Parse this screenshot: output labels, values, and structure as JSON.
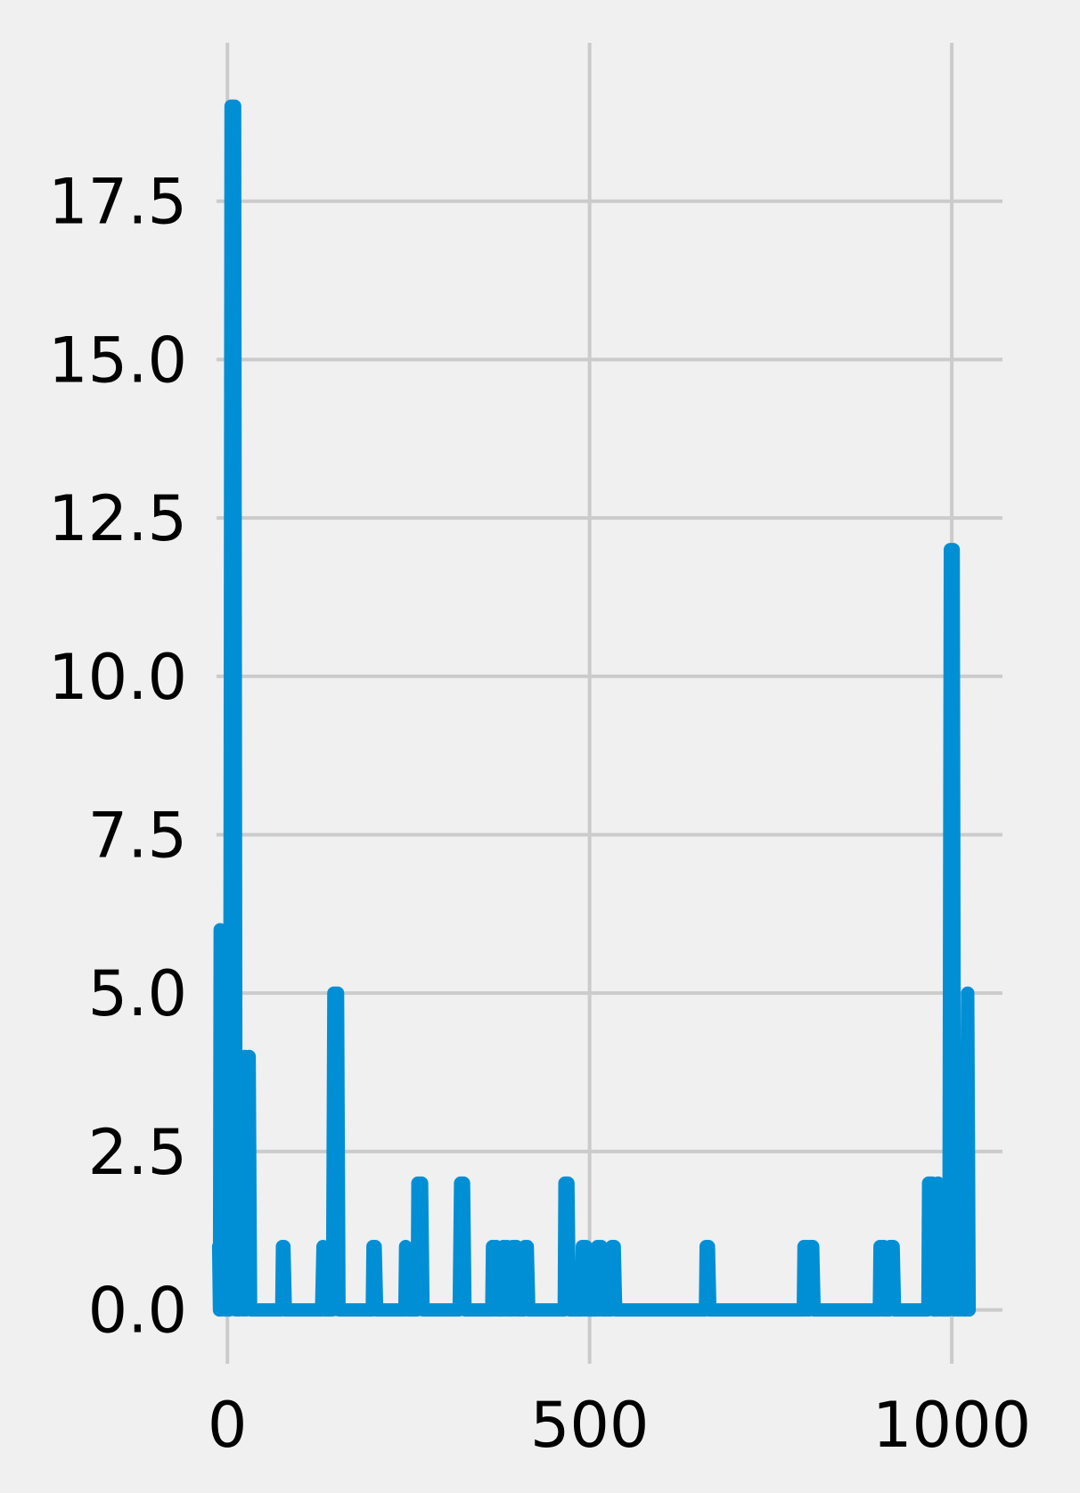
{
  "chart_data": {
    "type": "line",
    "title": "",
    "xlabel": "",
    "ylabel": "",
    "xlim": [
      -15,
      1070
    ],
    "ylim": [
      -0.85,
      20.0
    ],
    "x_ticks": [
      0,
      500,
      1000
    ],
    "y_ticks": [
      0.0,
      2.5,
      5.0,
      7.5,
      10.0,
      12.5,
      15.0,
      17.5
    ],
    "x_tick_labels": [
      "0",
      "500",
      "1000"
    ],
    "y_tick_labels": [
      "0.0",
      "2.5",
      "5.0",
      "7.5",
      "10.0",
      "12.5",
      "15.0",
      "17.5"
    ],
    "grid": true,
    "background_color": "#f0f0f0",
    "grid_color": "#cbcbcb",
    "series": [
      {
        "color": "#008fd5",
        "points": [
          [
            -12,
            1
          ],
          [
            -11,
            0
          ],
          [
            -10,
            6
          ],
          [
            -8,
            0
          ],
          [
            -6,
            3
          ],
          [
            -4,
            0
          ],
          [
            3,
            0
          ],
          [
            5,
            19
          ],
          [
            10,
            19
          ],
          [
            12,
            0
          ],
          [
            14,
            2
          ],
          [
            16,
            0
          ],
          [
            20,
            3
          ],
          [
            22,
            0
          ],
          [
            24,
            4
          ],
          [
            26,
            0
          ],
          [
            30,
            4
          ],
          [
            32,
            0
          ],
          [
            36,
            0
          ],
          [
            75,
            0
          ],
          [
            76,
            1
          ],
          [
            78,
            1
          ],
          [
            80,
            0
          ],
          [
            130,
            0
          ],
          [
            132,
            1
          ],
          [
            134,
            0
          ],
          [
            145,
            0
          ],
          [
            147,
            5
          ],
          [
            152,
            5
          ],
          [
            154,
            0
          ],
          [
            200,
            0
          ],
          [
            201,
            1
          ],
          [
            204,
            1
          ],
          [
            206,
            0
          ],
          [
            245,
            0
          ],
          [
            246,
            1
          ],
          [
            249,
            0
          ],
          [
            262,
            0
          ],
          [
            263,
            2
          ],
          [
            268,
            2
          ],
          [
            270,
            0
          ],
          [
            320,
            0
          ],
          [
            322,
            2
          ],
          [
            326,
            2
          ],
          [
            328,
            0
          ],
          [
            365,
            0
          ],
          [
            366,
            1
          ],
          [
            369,
            0
          ],
          [
            371,
            1
          ],
          [
            373,
            0
          ],
          [
            380,
            0
          ],
          [
            381,
            1
          ],
          [
            384,
            0
          ],
          [
            386,
            1
          ],
          [
            388,
            0
          ],
          [
            393,
            0
          ],
          [
            394,
            1
          ],
          [
            397,
            0
          ],
          [
            399,
            1
          ],
          [
            401,
            0
          ],
          [
            410,
            0
          ],
          [
            411,
            1
          ],
          [
            414,
            1
          ],
          [
            416,
            0
          ],
          [
            465,
            0
          ],
          [
            466,
            2
          ],
          [
            470,
            2
          ],
          [
            472,
            0
          ],
          [
            489,
            0
          ],
          [
            490,
            1
          ],
          [
            493,
            0
          ],
          [
            495,
            1
          ],
          [
            497,
            0
          ],
          [
            510,
            0
          ],
          [
            511,
            1
          ],
          [
            514,
            0
          ],
          [
            516,
            1
          ],
          [
            518,
            0
          ],
          [
            530,
            0
          ],
          [
            531,
            1
          ],
          [
            534,
            1
          ],
          [
            536,
            0
          ],
          [
            660,
            0
          ],
          [
            661,
            1
          ],
          [
            664,
            1
          ],
          [
            666,
            0
          ],
          [
            795,
            0
          ],
          [
            796,
            1
          ],
          [
            799,
            0
          ],
          [
            801,
            1
          ],
          [
            803,
            0
          ],
          [
            805,
            1
          ],
          [
            808,
            1
          ],
          [
            810,
            0
          ],
          [
            900,
            0
          ],
          [
            901,
            1
          ],
          [
            904,
            0
          ],
          [
            906,
            1
          ],
          [
            908,
            0
          ],
          [
            914,
            0
          ],
          [
            915,
            1
          ],
          [
            919,
            1
          ],
          [
            921,
            0
          ],
          [
            967,
            0
          ],
          [
            968,
            2
          ],
          [
            973,
            2
          ],
          [
            975,
            0
          ],
          [
            980,
            0
          ],
          [
            981,
            2
          ],
          [
            983,
            0
          ],
          [
            985,
            1
          ],
          [
            987,
            0
          ],
          [
            996,
            0
          ],
          [
            998,
            12
          ],
          [
            1002,
            12
          ],
          [
            1004,
            0
          ],
          [
            1006,
            2
          ],
          [
            1008,
            0
          ],
          [
            1011,
            0
          ],
          [
            1012,
            1
          ],
          [
            1014,
            0
          ],
          [
            1016,
            1
          ],
          [
            1018,
            0
          ],
          [
            1020,
            0
          ],
          [
            1022,
            5
          ],
          [
            1024,
            0
          ]
        ]
      }
    ]
  }
}
